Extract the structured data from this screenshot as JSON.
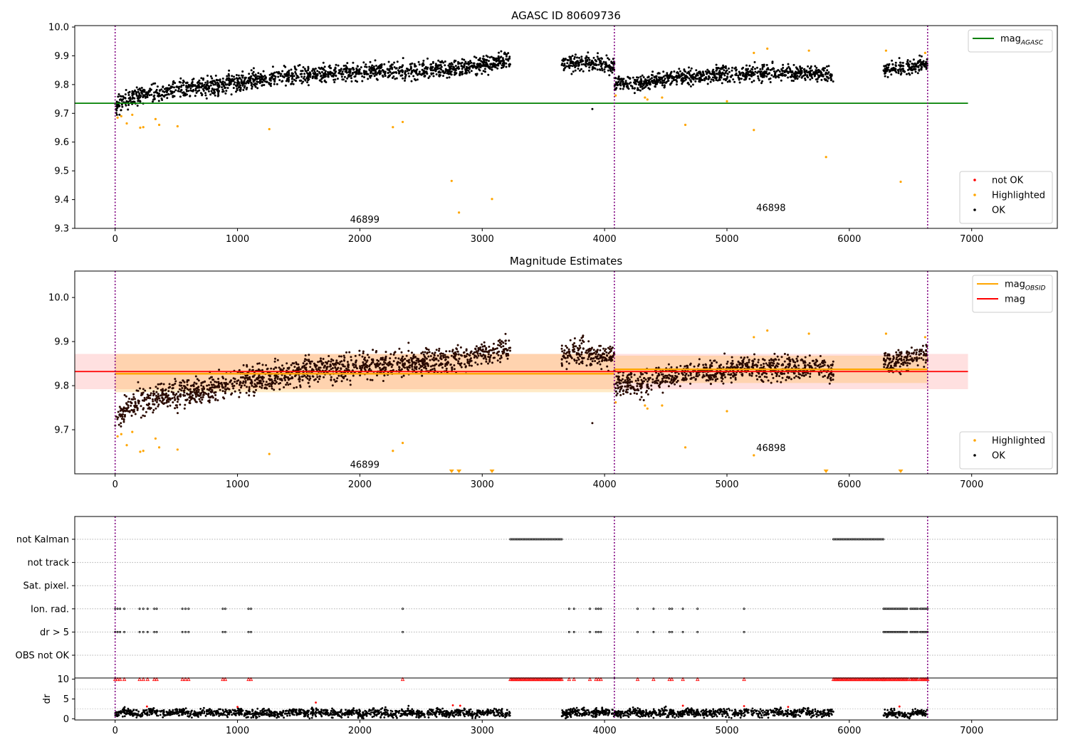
{
  "chart_data": [
    {
      "id": "p1",
      "type": "scatter",
      "title": "AGASC ID 80609736",
      "xlim": [
        -330,
        7700
      ],
      "ylim": [
        9.3,
        10.005
      ],
      "xticks": [
        0,
        1000,
        2000,
        3000,
        4000,
        5000,
        6000,
        7000
      ],
      "xtick_labels": [
        "0",
        "1000",
        "2000",
        "3000",
        "4000",
        "5000",
        "6000",
        "7000"
      ],
      "yticks": [
        9.3,
        9.4,
        9.5,
        9.6,
        9.7,
        9.8,
        9.9,
        10.0
      ],
      "ytick_labels": [
        "9.3",
        "9.4",
        "9.5",
        "9.6",
        "9.7",
        "9.8",
        "9.9",
        "10.0"
      ],
      "obs_boundaries": [
        0,
        4080,
        6640
      ],
      "obs_labels": [
        {
          "x": 2040,
          "y": 9.33,
          "text": "46899"
        },
        {
          "x": 5360,
          "y": 9.37,
          "text": "46898"
        }
      ],
      "reference_lines": [
        {
          "name": "mag_AGASC",
          "y": 9.735,
          "x": [
            -330,
            6970
          ],
          "color": "#008000"
        }
      ],
      "legends": [
        {
          "position": "top-right",
          "entries": [
            {
              "kind": "line",
              "color": "#008000",
              "label": "mag",
              "sub": "AGASC"
            }
          ]
        },
        {
          "position": "bottom-right",
          "entries": [
            {
              "kind": "dot",
              "color": "#ff0000",
              "label": "not OK"
            },
            {
              "kind": "dot",
              "color": "#ffa500",
              "label": "Highlighted"
            },
            {
              "kind": "dot",
              "color": "#000000",
              "label": "OK"
            }
          ]
        }
      ],
      "series": [
        {
          "name": "OK",
          "color": "#000000",
          "segments": [
            {
              "x": [
                0,
                200,
                400,
                800,
                1200,
                1600,
                2000,
                2400,
                2800,
                3000,
                3230
              ],
              "y": [
                9.725,
                9.765,
                9.775,
                9.795,
                9.82,
                9.835,
                9.845,
                9.85,
                9.86,
                9.87,
                9.885
              ],
              "spread": 0.028
            },
            {
              "x": [
                3650,
                3800,
                4080
              ],
              "y": [
                9.87,
                9.875,
                9.865
              ],
              "spread": 0.025
            },
            {
              "x": [
                4080,
                4300,
                4400,
                4700,
                5200,
                5800,
                5870
              ],
              "y": [
                9.81,
                9.8,
                9.815,
                9.83,
                9.84,
                9.84,
                9.825
              ],
              "spread": 0.025
            },
            {
              "x": [
                6280,
                6500,
                6640
              ],
              "y": [
                9.85,
                9.86,
                9.875
              ],
              "spread": 0.022
            }
          ],
          "outliers": [
            {
              "x": 3900,
              "y": 9.715
            }
          ]
        },
        {
          "name": "Highlighted",
          "color": "#ffa500",
          "points": [
            {
              "x": 20,
              "y": 9.685
            },
            {
              "x": 50,
              "y": 9.69
            },
            {
              "x": 95,
              "y": 9.665
            },
            {
              "x": 140,
              "y": 9.695
            },
            {
              "x": 205,
              "y": 9.65
            },
            {
              "x": 230,
              "y": 9.652
            },
            {
              "x": 330,
              "y": 9.68
            },
            {
              "x": 360,
              "y": 9.66
            },
            {
              "x": 510,
              "y": 9.655
            },
            {
              "x": 1260,
              "y": 9.645
            },
            {
              "x": 2270,
              "y": 9.652
            },
            {
              "x": 2350,
              "y": 9.67
            },
            {
              "x": 2750,
              "y": 9.465
            },
            {
              "x": 2810,
              "y": 9.355
            },
            {
              "x": 3080,
              "y": 9.402
            },
            {
              "x": 4090,
              "y": 9.762
            },
            {
              "x": 4330,
              "y": 9.755
            },
            {
              "x": 4350,
              "y": 9.748
            },
            {
              "x": 4470,
              "y": 9.755
            },
            {
              "x": 4660,
              "y": 9.66
            },
            {
              "x": 5000,
              "y": 9.742
            },
            {
              "x": 5220,
              "y": 9.642
            },
            {
              "x": 5220,
              "y": 9.91
            },
            {
              "x": 5330,
              "y": 9.925
            },
            {
              "x": 5670,
              "y": 9.918
            },
            {
              "x": 5810,
              "y": 9.548
            },
            {
              "x": 6300,
              "y": 9.918
            },
            {
              "x": 6420,
              "y": 9.462
            },
            {
              "x": 6620,
              "y": 9.91
            }
          ]
        }
      ]
    },
    {
      "id": "p2",
      "type": "scatter",
      "title": "Magnitude Estimates",
      "xlim": [
        -330,
        7700
      ],
      "ylim": [
        9.6,
        10.06
      ],
      "xticks": [
        0,
        1000,
        2000,
        3000,
        4000,
        5000,
        6000,
        7000
      ],
      "xtick_labels": [
        "0",
        "1000",
        "2000",
        "3000",
        "4000",
        "5000",
        "6000",
        "7000"
      ],
      "yticks": [
        9.7,
        9.8,
        9.9,
        10.0
      ],
      "ytick_labels": [
        "9.7",
        "9.8",
        "9.9",
        "10.0"
      ],
      "obs_boundaries": [
        0,
        4080,
        6640
      ],
      "obs_labels": [
        {
          "x": 2040,
          "y": 9.62,
          "text": "46899"
        },
        {
          "x": 5360,
          "y": 9.658,
          "text": "46898"
        }
      ],
      "bands": [
        {
          "x": [
            -330,
            6970
          ],
          "y": [
            9.792,
            9.872
          ],
          "color": "#ff0000",
          "opacity": 0.12
        },
        {
          "x": [
            0,
            4080
          ],
          "y": [
            9.785,
            9.872
          ],
          "color": "#ffa500",
          "opacity": 0.22
        },
        {
          "x": [
            4080,
            6640
          ],
          "y": [
            9.806,
            9.868
          ],
          "color": "#ffa500",
          "opacity": 0.22
        }
      ],
      "reference_lines": [
        {
          "name": "mag_OBSID 46899",
          "y": 9.827,
          "x": [
            0,
            4080
          ],
          "color": "#ffa500"
        },
        {
          "name": "mag_OBSID 46898",
          "y": 9.837,
          "x": [
            4080,
            6640
          ],
          "color": "#ffa500"
        },
        {
          "name": "mag",
          "y": 9.832,
          "x": [
            -330,
            6970
          ],
          "color": "#ff0000"
        }
      ],
      "legends": [
        {
          "position": "top-right",
          "entries": [
            {
              "kind": "line",
              "color": "#ffa500",
              "label": "mag",
              "sub": "OBSID"
            },
            {
              "kind": "line",
              "color": "#ff0000",
              "label": "mag"
            }
          ]
        },
        {
          "position": "bottom-right",
          "entries": [
            {
              "kind": "dot",
              "color": "#ffa500",
              "label": "Highlighted"
            },
            {
              "kind": "dot",
              "color": "#000000",
              "label": "OK"
            }
          ]
        }
      ],
      "series": [
        {
          "name": "OK",
          "color": "#2a0a00",
          "segments": [
            {
              "x": [
                0,
                200,
                400,
                800,
                1200,
                1600,
                2000,
                2400,
                2800,
                3000,
                3230
              ],
              "y": [
                9.725,
                9.765,
                9.775,
                9.795,
                9.82,
                9.835,
                9.845,
                9.85,
                9.86,
                9.87,
                9.885
              ],
              "spread": 0.028
            },
            {
              "x": [
                3650,
                3800,
                4080
              ],
              "y": [
                9.87,
                9.875,
                9.865
              ],
              "spread": 0.025
            },
            {
              "x": [
                4080,
                4300,
                4400,
                4700,
                5200,
                5800,
                5870
              ],
              "y": [
                9.81,
                9.8,
                9.815,
                9.83,
                9.84,
                9.84,
                9.825
              ],
              "spread": 0.025
            },
            {
              "x": [
                6280,
                6500,
                6640
              ],
              "y": [
                9.85,
                9.86,
                9.875
              ],
              "spread": 0.022
            }
          ],
          "outliers": [
            {
              "x": 3900,
              "y": 9.715
            }
          ]
        },
        {
          "name": "Highlighted",
          "color": "#ffa500",
          "points": [
            {
              "x": 20,
              "y": 9.685
            },
            {
              "x": 50,
              "y": 9.69
            },
            {
              "x": 95,
              "y": 9.665
            },
            {
              "x": 140,
              "y": 9.695
            },
            {
              "x": 205,
              "y": 9.65
            },
            {
              "x": 230,
              "y": 9.652
            },
            {
              "x": 330,
              "y": 9.68
            },
            {
              "x": 360,
              "y": 9.66
            },
            {
              "x": 510,
              "y": 9.655
            },
            {
              "x": 1260,
              "y": 9.645
            },
            {
              "x": 2270,
              "y": 9.652
            },
            {
              "x": 2350,
              "y": 9.67
            },
            {
              "x": 4090,
              "y": 9.762
            },
            {
              "x": 4330,
              "y": 9.755
            },
            {
              "x": 4350,
              "y": 9.748
            },
            {
              "x": 4470,
              "y": 9.755
            },
            {
              "x": 4660,
              "y": 9.66
            },
            {
              "x": 5000,
              "y": 9.742
            },
            {
              "x": 5220,
              "y": 9.642
            },
            {
              "x": 5220,
              "y": 9.91
            },
            {
              "x": 5330,
              "y": 9.925
            },
            {
              "x": 5670,
              "y": 9.918
            },
            {
              "x": 6300,
              "y": 9.918
            },
            {
              "x": 6620,
              "y": 9.91
            }
          ]
        },
        {
          "name": "Highlighted (below axis)",
          "color": "#ffa500",
          "marker": "triangle-down",
          "x": [
            2750,
            2810,
            3080,
            5810,
            6420
          ],
          "y": 9.6
        }
      ]
    },
    {
      "id": "p3",
      "type": "scatter",
      "title": "",
      "xlim": [
        -330,
        7700
      ],
      "rows": [
        "not Kalman",
        "not track",
        "Sat. pixel.",
        "Ion. rad.",
        "dr > 5",
        "OBS not OK"
      ],
      "obs_boundaries": [
        0,
        4080,
        6640
      ],
      "flags": [
        {
          "row": "not Kalman",
          "ranges": [
            [
              3230,
              3650
            ],
            [
              5870,
              6280
            ]
          ],
          "points": []
        },
        {
          "row": "not track",
          "ranges": [],
          "points": []
        },
        {
          "row": "Sat. pixel.",
          "ranges": [],
          "points": []
        },
        {
          "row": "Ion. rad.",
          "ranges": [
            [
              6280,
              6390
            ],
            [
              6400,
              6480
            ],
            [
              6500,
              6560
            ],
            [
              6580,
              6640
            ]
          ],
          "points": [
            0,
            20,
            40,
            75,
            200,
            230,
            265,
            320,
            340,
            550,
            575,
            600,
            880,
            900,
            1090,
            1110,
            2350,
            3710,
            3750,
            3880,
            3930,
            3950,
            3970,
            4270,
            4400,
            4530,
            4550,
            4640,
            4760,
            5140
          ]
        },
        {
          "row": "dr > 5",
          "ranges": [
            [
              6280,
              6390
            ],
            [
              6400,
              6480
            ],
            [
              6500,
              6560
            ],
            [
              6580,
              6640
            ]
          ],
          "points": [
            0,
            20,
            40,
            75,
            200,
            230,
            265,
            320,
            340,
            550,
            575,
            600,
            880,
            900,
            1090,
            1110,
            2350,
            3710,
            3750,
            3880,
            3930,
            3950,
            3970,
            4270,
            4400,
            4530,
            4550,
            4640,
            4760,
            5140
          ]
        },
        {
          "row": "OBS not OK",
          "ranges": [],
          "points": []
        }
      ]
    },
    {
      "id": "p4",
      "type": "scatter",
      "title": "",
      "ylabel": "dr",
      "xlim": [
        -330,
        7700
      ],
      "ylim": [
        -0.3,
        10.3
      ],
      "xticks": [
        0,
        1000,
        2000,
        3000,
        4000,
        5000,
        6000,
        7000
      ],
      "xtick_labels": [
        "0",
        "1000",
        "2000",
        "3000",
        "4000",
        "5000",
        "6000",
        "7000"
      ],
      "yticks": [
        0,
        5,
        10
      ],
      "ytick_labels": [
        "0",
        "5",
        "10"
      ],
      "obs_boundaries": [
        0,
        4080,
        6640
      ],
      "series": [
        {
          "name": "OK",
          "color": "#000000",
          "segments": [
            {
              "x": [
                0,
                3230
              ],
              "y": [
                1.5,
                1.5
              ],
              "spread": 1.0
            },
            {
              "x": [
                3650,
                5870
              ],
              "y": [
                1.5,
                1.5
              ],
              "spread": 1.0
            },
            {
              "x": [
                6280,
                6640
              ],
              "y": [
                1.3,
                1.3
              ],
              "spread": 0.9
            }
          ]
        },
        {
          "name": "not OK (dr clipped)",
          "color": "#ff0000",
          "y": 10,
          "ranges": [
            [
              3230,
              3650
            ],
            [
              5870,
              6280
            ],
            [
              6280,
              6390
            ],
            [
              6400,
              6480
            ],
            [
              6500,
              6560
            ],
            [
              6580,
              6640
            ]
          ],
          "points": [
            0,
            20,
            40,
            75,
            200,
            230,
            265,
            320,
            340,
            550,
            575,
            600,
            880,
            900,
            1090,
            1110,
            2350,
            3710,
            3750,
            3880,
            3930,
            3950,
            3970,
            4270,
            4400,
            4530,
            4550,
            4640,
            4760,
            5140
          ]
        },
        {
          "name": "not OK",
          "color": "#ff0000",
          "points": [
            {
              "x": 260,
              "y": 3.1
            },
            {
              "x": 1000,
              "y": 3.0
            },
            {
              "x": 1640,
              "y": 4.1
            },
            {
              "x": 2760,
              "y": 3.4
            },
            {
              "x": 2820,
              "y": 3.3
            },
            {
              "x": 4640,
              "y": 3.3
            },
            {
              "x": 5140,
              "y": 3.2
            },
            {
              "x": 5500,
              "y": 3.0
            },
            {
              "x": 6410,
              "y": 3.1
            }
          ]
        }
      ]
    }
  ]
}
